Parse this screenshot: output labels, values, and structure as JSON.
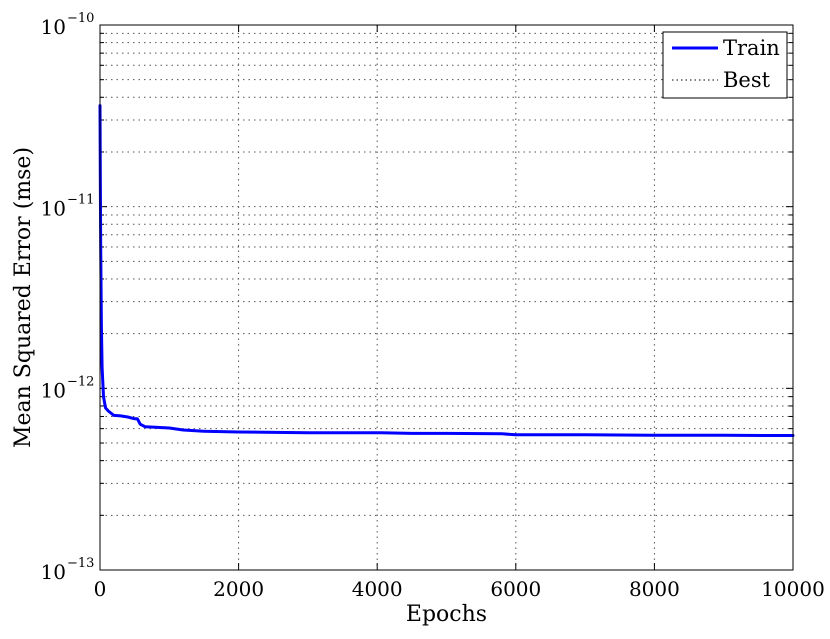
{
  "chart_data": {
    "type": "line",
    "title": "",
    "xlabel": "Epochs",
    "ylabel": "Mean Squared Error  (mse)",
    "xlim": [
      0,
      10000
    ],
    "ylim": [
      1e-13,
      1e-10
    ],
    "yscale": "log",
    "grid": true,
    "legend_position": "top-right",
    "x_ticks": [
      {
        "value": 0,
        "label": "0"
      },
      {
        "value": 2000,
        "label": "2000"
      },
      {
        "value": 4000,
        "label": "4000"
      },
      {
        "value": 6000,
        "label": "6000"
      },
      {
        "value": 8000,
        "label": "8000"
      },
      {
        "value": 10000,
        "label": "10000"
      }
    ],
    "y_ticks": [
      {
        "value": 1e-13,
        "base": "10",
        "exponent": "−13"
      },
      {
        "value": 1e-12,
        "base": "10",
        "exponent": "−12"
      },
      {
        "value": 1e-11,
        "base": "10",
        "exponent": "−11"
      },
      {
        "value": 1e-10,
        "base": "10",
        "exponent": "−10"
      }
    ],
    "series": [
      {
        "name": "Train",
        "color": "#0000ff",
        "style": "solid",
        "x": [
          0,
          5,
          10,
          20,
          30,
          50,
          80,
          120,
          200,
          300,
          400,
          500,
          540,
          580,
          650,
          800,
          1000,
          1200,
          1500,
          2000,
          3000,
          4000,
          4500,
          5000,
          5800,
          6000,
          7000,
          8000,
          9000,
          9600,
          10000
        ],
        "y": [
          3.6e-11,
          1.5e-11,
          6e-12,
          2.2e-12,
          1.3e-12,
          9e-13,
          7.8e-13,
          7.5e-13,
          7.1e-13,
          7.05e-13,
          6.95e-13,
          6.8e-13,
          6.8e-13,
          6.35e-13,
          6.15e-13,
          6.1e-13,
          6.05e-13,
          5.9e-13,
          5.8e-13,
          5.75e-13,
          5.7e-13,
          5.7e-13,
          5.65e-13,
          5.65e-13,
          5.62e-13,
          5.55e-13,
          5.55e-13,
          5.52e-13,
          5.52e-13,
          5.5e-13,
          5.5e-13
        ]
      },
      {
        "name": "Best",
        "color": "#000000",
        "style": "dotted",
        "x": [],
        "y": []
      }
    ]
  }
}
